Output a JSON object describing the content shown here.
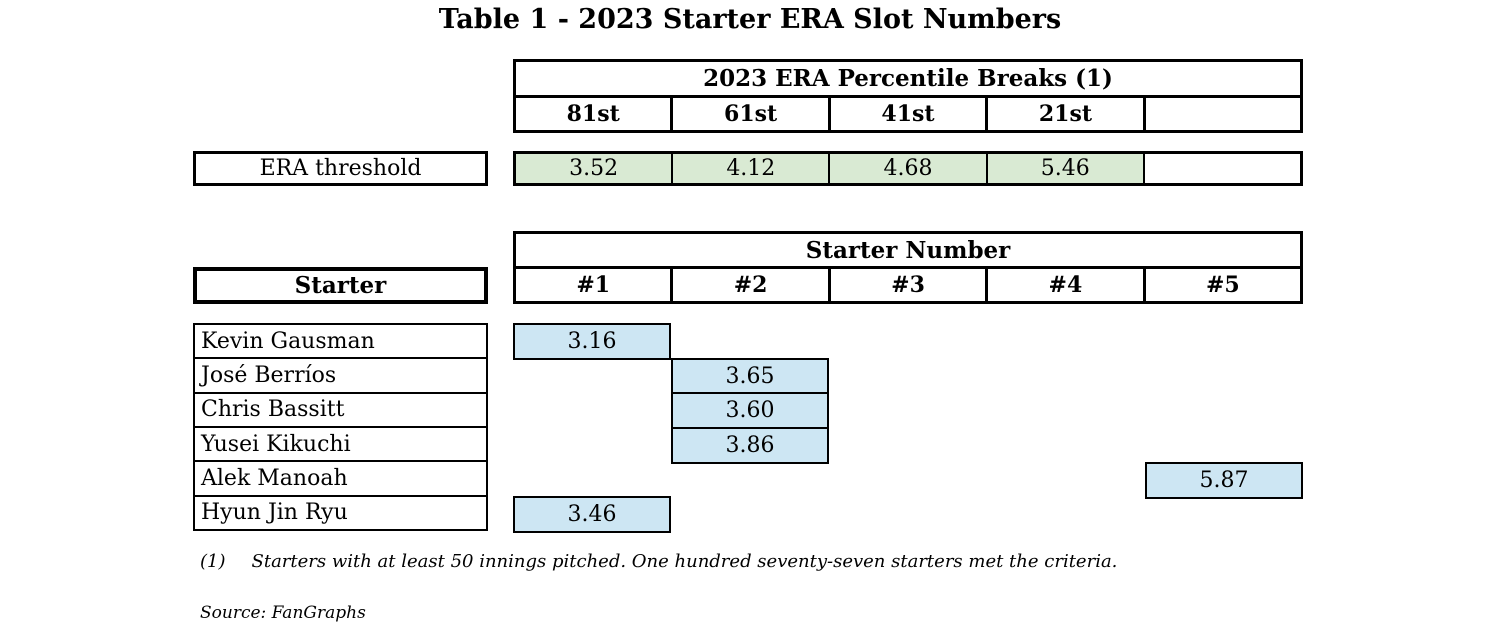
{
  "title": "Table 1 - 2023 Starter ERA Slot Numbers",
  "colors": {
    "threshold_fill": "#d9ead3",
    "value_fill": "#cde6f3",
    "border": "#000000",
    "background": "#ffffff"
  },
  "percentile_table": {
    "header": "2023 ERA Percentile Breaks (1)",
    "columns": [
      "81st",
      "61st",
      "41st",
      "21st",
      ""
    ],
    "threshold_label": "ERA threshold",
    "threshold_values": [
      "3.52",
      "4.12",
      "4.68",
      "5.46",
      ""
    ]
  },
  "starter_table": {
    "header": "Starter Number",
    "columns": [
      "#1",
      "#2",
      "#3",
      "#4",
      "#5"
    ],
    "row_label_header": "Starter",
    "rows": [
      {
        "name": "Kevin Gausman",
        "slot": 1,
        "era": "3.16"
      },
      {
        "name": "José Berríos",
        "slot": 2,
        "era": "3.65"
      },
      {
        "name": "Chris Bassitt",
        "slot": 2,
        "era": "3.60"
      },
      {
        "name": "Yusei Kikuchi",
        "slot": 2,
        "era": "3.86"
      },
      {
        "name": "Alek Manoah",
        "slot": 5,
        "era": "5.87"
      },
      {
        "name": "Hyun Jin Ryu",
        "slot": 1,
        "era": "3.46"
      }
    ]
  },
  "footnote": {
    "marker": "(1)",
    "text": "Starters with at least 50 innings pitched. One hundred seventy-seven starters met the criteria."
  },
  "source": "Source: FanGraphs"
}
